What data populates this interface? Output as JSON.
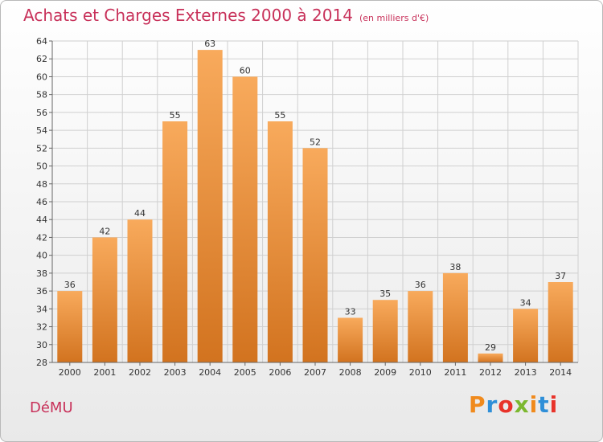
{
  "header": {
    "title": "Achats et Charges Externes 2000 à 2014",
    "subtitle": "(en milliers d'€)"
  },
  "footer": {
    "place": "DéMU",
    "brand": "Proxiti",
    "brand_letters": [
      "P",
      "r",
      "o",
      "x",
      "i",
      "t",
      "i"
    ],
    "brand_colors": [
      "#f08a1c",
      "#2f8fd8",
      "#e8332a",
      "#7cb82f",
      "#f08a1c",
      "#2f8fd8",
      "#e8332a"
    ]
  },
  "colors": {
    "bar_light": "#f8aa5c",
    "bar_dark": "#d2731f",
    "grid": "#d0d0d0",
    "axis": "#666666",
    "title": "#c8315a"
  },
  "chart_data": {
    "type": "bar",
    "categories": [
      "2000",
      "2001",
      "2002",
      "2003",
      "2004",
      "2005",
      "2006",
      "2007",
      "2008",
      "2009",
      "2010",
      "2011",
      "2012",
      "2013",
      "2014"
    ],
    "values": [
      36,
      42,
      44,
      55,
      63,
      60,
      55,
      52,
      33,
      35,
      36,
      38,
      29,
      34,
      37
    ],
    "title": "Achats et Charges Externes 2000 à 2014",
    "subtitle": "(en milliers d'€)",
    "xlabel": "",
    "ylabel": "",
    "ylim": [
      28,
      64
    ],
    "yticks": [
      28,
      30,
      32,
      34,
      36,
      38,
      40,
      42,
      44,
      46,
      48,
      50,
      52,
      54,
      56,
      58,
      60,
      62,
      64
    ],
    "grid": true,
    "data_labels": true
  }
}
